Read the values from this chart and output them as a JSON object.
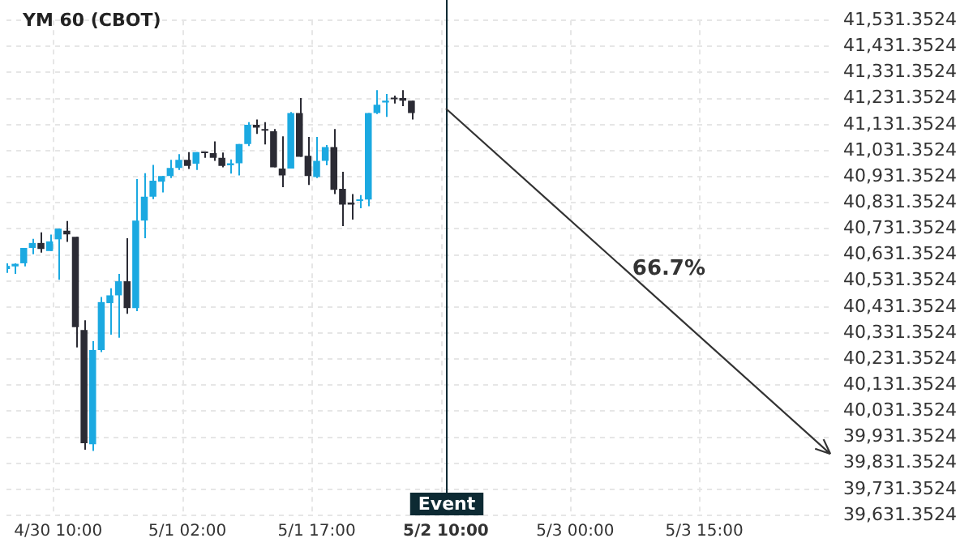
{
  "chart_data": {
    "type": "candlestick",
    "title": "YM 60 (CBOT)",
    "categories": [
      null,
      null,
      null,
      null,
      null,
      null,
      "4/30 10:00",
      null,
      null,
      null,
      null,
      null,
      null,
      null,
      null,
      null,
      null,
      null,
      null,
      null,
      null,
      "5/1 02:00",
      null,
      null,
      null,
      null,
      null,
      null,
      null,
      null,
      null,
      null,
      null,
      null,
      null,
      null,
      "5/1 17:00",
      null,
      null,
      null,
      null,
      null,
      null,
      null,
      null,
      null,
      null,
      null,
      null,
      null,
      null,
      "5/2 10:00",
      null,
      null,
      null,
      null,
      null,
      null,
      null,
      null,
      null,
      null,
      null,
      null,
      null,
      null,
      "5/3 00:00",
      null,
      null,
      null,
      null,
      null,
      null,
      null,
      null,
      null,
      null,
      null,
      null,
      null,
      null,
      "5/3 15:00",
      null,
      null,
      null,
      null,
      null,
      null,
      null,
      null,
      null,
      null,
      null,
      null,
      null,
      null,
      null
    ],
    "ohlc": [
      [
        40577,
        40599,
        40562,
        40589
      ],
      [
        40587,
        40599,
        40558,
        40597
      ],
      [
        40599,
        40658,
        40587,
        40658
      ],
      [
        40658,
        40693,
        40634,
        40677
      ],
      [
        40677,
        40718,
        40640,
        40654
      ],
      [
        40646,
        40709,
        40646,
        40683
      ],
      [
        40691,
        40732,
        40536,
        40732
      ],
      [
        40724,
        40761,
        40681,
        40710
      ],
      [
        40701,
        40701,
        40276,
        40354
      ],
      [
        40343,
        40380,
        39883,
        39908
      ],
      [
        39904,
        40300,
        39879,
        40266
      ],
      [
        40266,
        40470,
        40258,
        40450
      ],
      [
        40446,
        40503,
        40325,
        40476
      ],
      [
        40476,
        40558,
        40313,
        40530
      ],
      [
        40530,
        40695,
        40405,
        40427
      ],
      [
        40427,
        40922,
        40415,
        40763
      ],
      [
        40763,
        40945,
        40695,
        40855
      ],
      [
        40855,
        40977,
        40845,
        40916
      ],
      [
        40912,
        40934,
        40871,
        40934
      ],
      [
        40934,
        40996,
        40926,
        40965
      ],
      [
        40965,
        41018,
        40957,
        40996
      ],
      [
        40996,
        41026,
        40961,
        40973
      ],
      [
        40981,
        41026,
        40957,
        41026
      ],
      [
        41026,
        41026,
        41004,
        41022
      ],
      [
        41022,
        41067,
        40992,
        41004
      ],
      [
        41004,
        41024,
        40967,
        40973
      ],
      [
        40975,
        40998,
        40943,
        40983
      ],
      [
        40983,
        41057,
        40936,
        41057
      ],
      [
        41057,
        41141,
        41049,
        41131
      ],
      [
        41131,
        41151,
        41096,
        41120
      ],
      [
        41112,
        41141,
        41055,
        41108
      ],
      [
        41106,
        41114,
        40967,
        40967
      ],
      [
        40963,
        41086,
        40891,
        40936
      ],
      [
        40963,
        41180,
        40963,
        41176
      ],
      [
        41176,
        41233,
        41008,
        41008
      ],
      [
        41012,
        41084,
        40900,
        40934
      ],
      [
        40930,
        41084,
        40926,
        40992
      ],
      [
        40992,
        41053,
        40975,
        41045
      ],
      [
        41045,
        41114,
        40865,
        40881
      ],
      [
        40885,
        40950,
        40742,
        40824
      ],
      [
        40832,
        40865,
        40767,
        40824
      ],
      [
        40838,
        40861,
        40810,
        40844
      ],
      [
        40844,
        41176,
        40818,
        41176
      ],
      [
        41176,
        41264,
        41172,
        41208
      ],
      [
        41216,
        41249,
        41161,
        41223
      ],
      [
        41233,
        41243,
        41212,
        41229
      ],
      [
        41233,
        41264,
        41202,
        41223
      ],
      [
        41223,
        41223,
        41151,
        41176
      ],
      null,
      null,
      null,
      null,
      null,
      null,
      null,
      null,
      null,
      null,
      null,
      null,
      null,
      null,
      null,
      null,
      null,
      null,
      null,
      null,
      null,
      null,
      null,
      null,
      null,
      null,
      null,
      null,
      null,
      null,
      null,
      null,
      null,
      null,
      null,
      null,
      null,
      null,
      null,
      null,
      null,
      null,
      null,
      null,
      null,
      null,
      null,
      null,
      null
    ],
    "colors": [
      "#1ba9e1",
      "#1ba9e1",
      "#1ba9e1",
      "#1ba9e1",
      "#2b2b34",
      "#1ba9e1",
      "#1ba9e1",
      "#2b2b34",
      "#2b2b34",
      "#2b2b34",
      "#1ba9e1",
      "#1ba9e1",
      "#1ba9e1",
      "#1ba9e1",
      "#2b2b34",
      "#1ba9e1",
      "#1ba9e1",
      "#1ba9e1",
      "#1ba9e1",
      "#1ba9e1",
      "#1ba9e1",
      "#2b2b34",
      "#1ba9e1",
      "#2b2b34",
      "#2b2b34",
      "#2b2b34",
      "#1ba9e1",
      "#1ba9e1",
      "#1ba9e1",
      "#2b2b34",
      "#2b2b34",
      "#2b2b34",
      "#2b2b34",
      "#1ba9e1",
      "#2b2b34",
      "#2b2b34",
      "#1ba9e1",
      "#1ba9e1",
      "#2b2b34",
      "#2b2b34",
      "#2b2b34",
      "#1ba9e1",
      "#1ba9e1",
      "#1ba9e1",
      "#1ba9e1",
      "#2b2b34",
      "#2b2b34",
      "#2b2b34",
      null,
      null,
      null,
      null,
      null,
      null,
      null,
      null,
      null,
      null,
      null,
      null,
      null,
      null,
      null,
      null,
      null,
      null,
      null,
      null,
      null,
      null,
      null,
      null,
      null,
      null,
      null,
      null,
      null,
      null,
      null,
      null,
      null,
      null,
      null,
      null,
      null,
      null,
      null,
      null,
      null,
      null,
      null,
      null,
      null,
      null,
      null,
      null,
      null
    ],
    "annotations": [
      "66.7%"
    ],
    "ref_lines": [
      {
        "axis": "x",
        "value": "5/2 10:00",
        "label": "Event",
        "color": "#0d2a33"
      }
    ],
    "ylim": [
      39631.3524,
      41531.3524
    ],
    "yticks": [
      {
        "value": 39631.3524,
        "label": "39,631.3524"
      },
      {
        "value": 39731.3524,
        "label": "39,731.3524"
      },
      {
        "value": 39831.3524,
        "label": "39,831.3524"
      },
      {
        "value": 39931.3524,
        "label": "39,931.3524"
      },
      {
        "value": 40031.3524,
        "label": "40,031.3524"
      },
      {
        "value": 40131.3524,
        "label": "40,131.3524"
      },
      {
        "value": 40231.3524,
        "label": "40,231.3524"
      },
      {
        "value": 40331.3524,
        "label": "40,331.3524"
      },
      {
        "value": 40431.3524,
        "label": "40,431.3524"
      },
      {
        "value": 40531.3524,
        "label": "40,531.3524"
      },
      {
        "value": 40631.3524,
        "label": "40,631.3524"
      },
      {
        "value": 40731.3524,
        "label": "40,731.3524"
      },
      {
        "value": 40831.3524,
        "label": "40,831.3524"
      },
      {
        "value": 40931.3524,
        "label": "40,931.3524"
      },
      {
        "value": 41031.3524,
        "label": "41,031.3524"
      },
      {
        "value": 41131.3524,
        "label": "41,131.3524"
      },
      {
        "value": 41231.3524,
        "label": "41,231.3524"
      },
      {
        "value": 41331.3524,
        "label": "41,331.3524"
      },
      {
        "value": 41431.3524,
        "label": "41,431.3524"
      },
      {
        "value": 41531.3524,
        "label": "41,531.3524"
      }
    ],
    "grid": true,
    "legend": false
  }
}
